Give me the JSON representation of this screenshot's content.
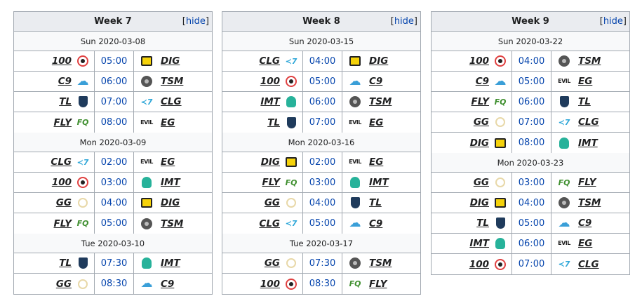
{
  "hide_label": "hide",
  "weeks": [
    {
      "title": "Week 7",
      "days": [
        {
          "date": "Sun 2020-03-08",
          "matches": [
            {
              "t1": "100",
              "t1_icon": "100-thieves-logo-icon",
              "time": "05:00",
              "t2": "DIG",
              "t2_icon": "dignitas-logo-icon"
            },
            {
              "t1": "C9",
              "t1_icon": "cloud9-logo-icon",
              "time": "06:00",
              "t2": "TSM",
              "t2_icon": "tsm-logo-icon"
            },
            {
              "t1": "TL",
              "t1_icon": "team-liquid-logo-icon",
              "time": "07:00",
              "t2": "CLG",
              "t2_icon": "clg-logo-icon"
            },
            {
              "t1": "FLY",
              "t1_icon": "flyquest-logo-icon",
              "time": "08:00",
              "t2": "EG",
              "t2_icon": "evil-geniuses-logo-icon"
            }
          ]
        },
        {
          "date": "Mon 2020-03-09",
          "matches": [
            {
              "t1": "CLG",
              "t1_icon": "clg-logo-icon",
              "time": "02:00",
              "t2": "EG",
              "t2_icon": "evil-geniuses-logo-icon"
            },
            {
              "t1": "100",
              "t1_icon": "100-thieves-logo-icon",
              "time": "03:00",
              "t2": "IMT",
              "t2_icon": "immortals-logo-icon"
            },
            {
              "t1": "GG",
              "t1_icon": "golden-guardians-logo-icon",
              "time": "04:00",
              "t2": "DIG",
              "t2_icon": "dignitas-logo-icon"
            },
            {
              "t1": "FLY",
              "t1_icon": "flyquest-logo-icon",
              "time": "05:00",
              "t2": "TSM",
              "t2_icon": "tsm-logo-icon"
            }
          ]
        },
        {
          "date": "Tue 2020-03-10",
          "matches": [
            {
              "t1": "TL",
              "t1_icon": "team-liquid-logo-icon",
              "time": "07:30",
              "t2": "IMT",
              "t2_icon": "immortals-logo-icon"
            },
            {
              "t1": "GG",
              "t1_icon": "golden-guardians-logo-icon",
              "time": "08:30",
              "t2": "C9",
              "t2_icon": "cloud9-logo-icon"
            }
          ]
        }
      ]
    },
    {
      "title": "Week 8",
      "days": [
        {
          "date": "Sun 2020-03-15",
          "matches": [
            {
              "t1": "CLG",
              "t1_icon": "clg-logo-icon",
              "time": "04:00",
              "t2": "DIG",
              "t2_icon": "dignitas-logo-icon"
            },
            {
              "t1": "100",
              "t1_icon": "100-thieves-logo-icon",
              "time": "05:00",
              "t2": "C9",
              "t2_icon": "cloud9-logo-icon"
            },
            {
              "t1": "IMT",
              "t1_icon": "immortals-logo-icon",
              "time": "06:00",
              "t2": "TSM",
              "t2_icon": "tsm-logo-icon"
            },
            {
              "t1": "TL",
              "t1_icon": "team-liquid-logo-icon",
              "time": "07:00",
              "t2": "EG",
              "t2_icon": "evil-geniuses-logo-icon"
            }
          ]
        },
        {
          "date": "Mon 2020-03-16",
          "matches": [
            {
              "t1": "DIG",
              "t1_icon": "dignitas-logo-icon",
              "time": "02:00",
              "t2": "EG",
              "t2_icon": "evil-geniuses-logo-icon"
            },
            {
              "t1": "FLY",
              "t1_icon": "flyquest-logo-icon",
              "time": "03:00",
              "t2": "IMT",
              "t2_icon": "immortals-logo-icon"
            },
            {
              "t1": "GG",
              "t1_icon": "golden-guardians-logo-icon",
              "time": "04:00",
              "t2": "TL",
              "t2_icon": "team-liquid-logo-icon"
            },
            {
              "t1": "CLG",
              "t1_icon": "clg-logo-icon",
              "time": "05:00",
              "t2": "C9",
              "t2_icon": "cloud9-logo-icon"
            }
          ]
        },
        {
          "date": "Tue 2020-03-17",
          "matches": [
            {
              "t1": "GG",
              "t1_icon": "golden-guardians-logo-icon",
              "time": "07:30",
              "t2": "TSM",
              "t2_icon": "tsm-logo-icon"
            },
            {
              "t1": "100",
              "t1_icon": "100-thieves-logo-icon",
              "time": "08:30",
              "t2": "FLY",
              "t2_icon": "flyquest-logo-icon"
            }
          ]
        }
      ]
    },
    {
      "title": "Week 9",
      "days": [
        {
          "date": "Sun 2020-03-22",
          "matches": [
            {
              "t1": "100",
              "t1_icon": "100-thieves-logo-icon",
              "time": "04:00",
              "t2": "TSM",
              "t2_icon": "tsm-logo-icon"
            },
            {
              "t1": "C9",
              "t1_icon": "cloud9-logo-icon",
              "time": "05:00",
              "t2": "EG",
              "t2_icon": "evil-geniuses-logo-icon"
            },
            {
              "t1": "FLY",
              "t1_icon": "flyquest-logo-icon",
              "time": "06:00",
              "t2": "TL",
              "t2_icon": "team-liquid-logo-icon"
            },
            {
              "t1": "GG",
              "t1_icon": "golden-guardians-logo-icon",
              "time": "07:00",
              "t2": "CLG",
              "t2_icon": "clg-logo-icon"
            },
            {
              "t1": "DIG",
              "t1_icon": "dignitas-logo-icon",
              "time": "08:00",
              "t2": "IMT",
              "t2_icon": "immortals-logo-icon"
            }
          ]
        },
        {
          "date": "Mon 2020-03-23",
          "matches": [
            {
              "t1": "GG",
              "t1_icon": "golden-guardians-logo-icon",
              "time": "03:00",
              "t2": "FLY",
              "t2_icon": "flyquest-logo-icon"
            },
            {
              "t1": "DIG",
              "t1_icon": "dignitas-logo-icon",
              "time": "04:00",
              "t2": "TSM",
              "t2_icon": "tsm-logo-icon"
            },
            {
              "t1": "TL",
              "t1_icon": "team-liquid-logo-icon",
              "time": "05:00",
              "t2": "C9",
              "t2_icon": "cloud9-logo-icon"
            },
            {
              "t1": "IMT",
              "t1_icon": "immortals-logo-icon",
              "time": "06:00",
              "t2": "EG",
              "t2_icon": "evil-geniuses-logo-icon"
            },
            {
              "t1": "100",
              "t1_icon": "100-thieves-logo-icon",
              "time": "07:00",
              "t2": "CLG",
              "t2_icon": "clg-logo-icon"
            }
          ]
        }
      ]
    }
  ]
}
